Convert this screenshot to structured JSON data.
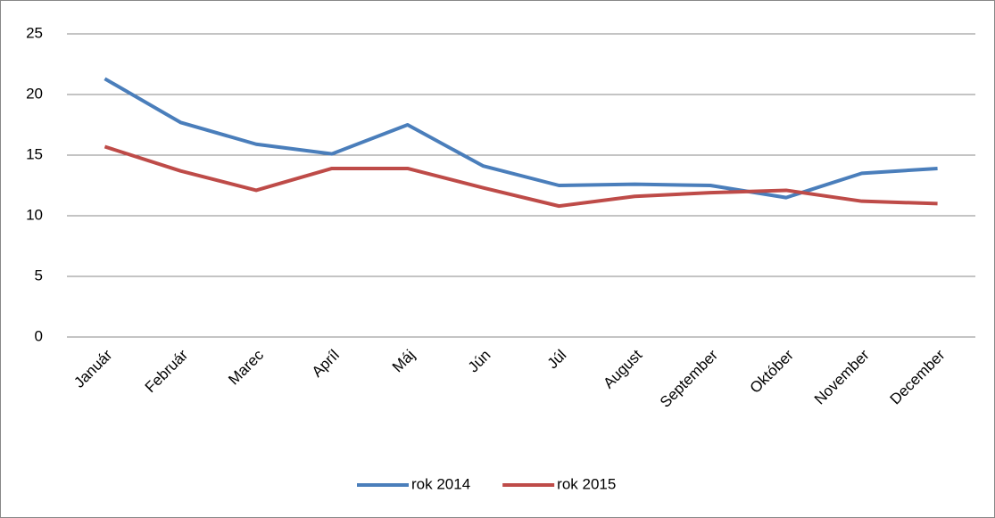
{
  "chart_data": {
    "type": "line",
    "categories": [
      "Január",
      "Február",
      "Marec",
      "Apríl",
      "Máj",
      "Jún",
      "Júl",
      "August",
      "September",
      "Október",
      "November",
      "December"
    ],
    "series": [
      {
        "name": "rok 2014",
        "color": "#4a7ebb",
        "values": [
          21.3,
          17.7,
          15.9,
          15.1,
          17.5,
          14.1,
          12.5,
          12.6,
          12.5,
          11.5,
          13.5,
          13.9
        ]
      },
      {
        "name": "rok 2015",
        "color": "#be4b48",
        "values": [
          15.7,
          13.7,
          12.1,
          13.9,
          13.9,
          12.3,
          10.8,
          11.6,
          11.9,
          12.1,
          11.2,
          11.0
        ]
      }
    ],
    "ylim": [
      0,
      25
    ],
    "yticks": [
      0,
      5,
      10,
      15,
      20,
      25
    ],
    "grid": true,
    "legend": "bottom"
  }
}
